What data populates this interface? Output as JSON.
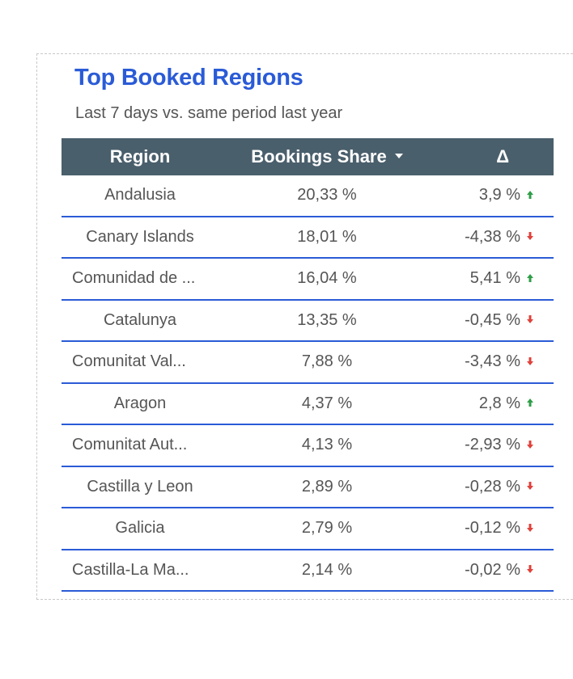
{
  "widget": {
    "title": "Top Booked Regions",
    "subtitle": "Last 7 days vs. same period last year"
  },
  "table": {
    "headers": {
      "region": "Region",
      "share": "Bookings Share",
      "delta": "Δ"
    },
    "sort": {
      "column": "share",
      "direction": "descending"
    },
    "rows": [
      {
        "region": "Andalusia",
        "share": "20,33 %",
        "delta": "3,9 %",
        "trend": "up"
      },
      {
        "region": "Canary Islands",
        "share": "18,01 %",
        "delta": "-4,38 %",
        "trend": "down"
      },
      {
        "region": "Comunidad de ...",
        "share": "16,04 %",
        "delta": "5,41 %",
        "trend": "up"
      },
      {
        "region": "Catalunya",
        "share": "13,35 %",
        "delta": "-0,45 %",
        "trend": "down"
      },
      {
        "region": "Comunitat Val...",
        "share": "7,88 %",
        "delta": "-3,43 %",
        "trend": "down"
      },
      {
        "region": "Aragon",
        "share": "4,37 %",
        "delta": "2,8 %",
        "trend": "up"
      },
      {
        "region": "Comunitat Aut...",
        "share": "4,13 %",
        "delta": "-2,93 %",
        "trend": "down"
      },
      {
        "region": "Castilla y Leon",
        "share": "2,89 %",
        "delta": "-0,28 %",
        "trend": "down"
      },
      {
        "region": "Galicia",
        "share": "2,79 %",
        "delta": "-0,12 %",
        "trend": "down"
      },
      {
        "region": "Castilla-La Ma...",
        "share": "2,14 %",
        "delta": "-0,02 %",
        "trend": "down"
      }
    ]
  },
  "colors": {
    "title": "#2a5bd7",
    "header_bg": "#4a5f6c",
    "row_divider": "#2a5bd7",
    "trend_up": "#2e9e47",
    "trend_down": "#e0413a"
  },
  "icons": {
    "sort": "caret-down-icon",
    "up": "arrow-up-icon",
    "down": "arrow-down-icon"
  }
}
